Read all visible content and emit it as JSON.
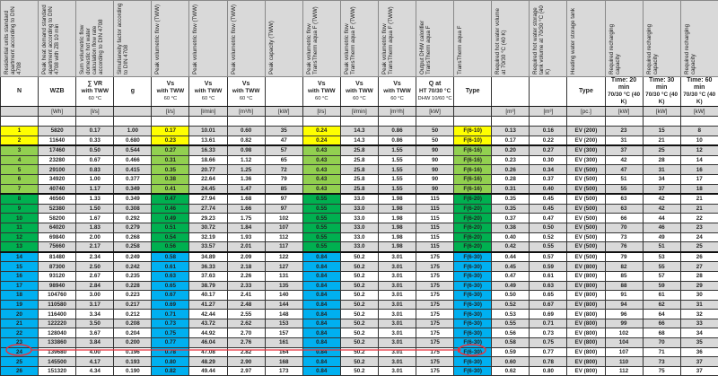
{
  "table": {
    "headers": [
      "Residential units standard apartment according to DIN 4708",
      "Peak heat demand standard apartment according to DIN 4708 with ZB 10 min",
      "Sum volumetric flow domestic hot water calculation flow rate according to DIN 4708",
      "Simultaneity factor according to DIN 4708",
      "Peak volumetric flow (TWW)",
      "Peak volumetric flow (TWW)",
      "Peak volumetric flow (TWW)",
      "Peak capacity (TWW)",
      "Peak volumetric flow TransTherm aqua F (TWW)",
      "Peak volumetric flow TransTherm aqua F (TWW)",
      "Peak volumetric flow TransTherm aqua F (TWW)",
      "Output DHW calorifier TransTherm aqua F",
      "TransTherm aqua F",
      "Required hot water volume at 70/30 °C (40 K)",
      "Required hot water storage tank volume at 70/30 °C (40 K)",
      "Heating water storage tank",
      "Required recharging capacity",
      "Required recharging capacity",
      "Required recharging capacity"
    ],
    "symbols": [
      [
        "N",
        "",
        ""
      ],
      [
        "WZB",
        "",
        ""
      ],
      [
        "∑ VR",
        "with TWW",
        "60 °C"
      ],
      [
        "g",
        "",
        ""
      ],
      [
        "Vs",
        "with TWW",
        "60 °C"
      ],
      [
        "Vs",
        "with TWW",
        "60 °C"
      ],
      [
        "Vs",
        "with TWW",
        "60 °C"
      ],
      [
        "",
        "",
        ""
      ],
      [
        "Vs",
        "with TWW",
        "60 °C"
      ],
      [
        "Vs",
        "with TWW",
        "60 °C"
      ],
      [
        "Vs",
        "with TWW",
        "60 °C"
      ],
      [
        "Q at",
        "HT 70/30 °C",
        "DHW 10/60 °C"
      ],
      [
        "Type",
        "",
        ""
      ],
      [
        "",
        "",
        ""
      ],
      [
        "",
        "",
        ""
      ],
      [
        "Type",
        "",
        ""
      ],
      [
        "Time: 20 min",
        "70/30 °C (40 K)",
        ""
      ],
      [
        "Time: 30 min",
        "70/30 °C (40 K)",
        ""
      ],
      [
        "Time: 60 min",
        "70/30 °C (40 K)",
        ""
      ]
    ],
    "units": [
      "",
      "[Wh]",
      "[l/s]",
      "",
      "[l/s]",
      "[l/min]",
      "[m³/h]",
      "[kW]",
      "[l/s]",
      "[l/min]",
      "[m³/h]",
      "[kW]",
      "",
      "[m³]",
      "[m³]",
      "[pc.]",
      "[kW]",
      "[kW]",
      "[kW]"
    ],
    "highlight_colors": {
      "yellow": "#ffff00",
      "lgreen": "#92d050",
      "green": "#00b050",
      "blue": "#00b0f0"
    },
    "annotation": {
      "highlighted_row": "25",
      "color": "#e8323c"
    },
    "rows": [
      [
        "1",
        "5820",
        "0.17",
        "1.00",
        "0.17",
        "10.01",
        "0.60",
        "35",
        "0.24",
        "14.3",
        "0.86",
        "50",
        "F(6-10)",
        "0.13",
        "0.16",
        "EV (200)",
        "23",
        "15",
        "8"
      ],
      [
        "2",
        "11640",
        "0.33",
        "0.680",
        "0.23",
        "13.61",
        "0.82",
        "47",
        "0.24",
        "14.3",
        "0.86",
        "50",
        "F(6-10)",
        "0.17",
        "0.22",
        "EV (200)",
        "31",
        "21",
        "10"
      ],
      [
        "3",
        "17460",
        "0.50",
        "0.544",
        "0.27",
        "16.33",
        "0.98",
        "57",
        "0.43",
        "25.8",
        "1.55",
        "90",
        "F(6-16)",
        "0.20",
        "0.27",
        "EV (300)",
        "37",
        "25",
        "12"
      ],
      [
        "4",
        "23280",
        "0.67",
        "0.466",
        "0.31",
        "18.66",
        "1.12",
        "65",
        "0.43",
        "25.8",
        "1.55",
        "90",
        "F(6-16)",
        "0.23",
        "0.30",
        "EV (300)",
        "42",
        "28",
        "14"
      ],
      [
        "5",
        "29100",
        "0.83",
        "0.415",
        "0.35",
        "20.77",
        "1.25",
        "72",
        "0.43",
        "25.8",
        "1.55",
        "90",
        "F(6-16)",
        "0.26",
        "0.34",
        "EV (500)",
        "47",
        "31",
        "16"
      ],
      [
        "6",
        "34920",
        "1.00",
        "0.377",
        "0.38",
        "22.64",
        "1.36",
        "79",
        "0.43",
        "25.8",
        "1.55",
        "90",
        "F(6-16)",
        "0.28",
        "0.37",
        "EV (500)",
        "51",
        "34",
        "17"
      ],
      [
        "7",
        "40740",
        "1.17",
        "0.349",
        "0.41",
        "24.45",
        "1.47",
        "85",
        "0.43",
        "25.8",
        "1.55",
        "90",
        "F(6-16)",
        "0.31",
        "0.40",
        "EV (500)",
        "55",
        "37",
        "18"
      ],
      [
        "8",
        "46560",
        "1.33",
        "0.349",
        "0.47",
        "27.94",
        "1.68",
        "97",
        "0.55",
        "33.0",
        "1.98",
        "115",
        "F(6-20)",
        "0.35",
        "0.45",
        "EV (500)",
        "63",
        "42",
        "21"
      ],
      [
        "9",
        "52380",
        "1.50",
        "0.308",
        "0.46",
        "27.74",
        "1.66",
        "97",
        "0.55",
        "33.0",
        "1.98",
        "115",
        "F(6-20)",
        "0.35",
        "0.45",
        "EV (500)",
        "63",
        "42",
        "21"
      ],
      [
        "10",
        "58200",
        "1.67",
        "0.292",
        "0.49",
        "29.23",
        "1.75",
        "102",
        "0.55",
        "33.0",
        "1.98",
        "115",
        "F(6-20)",
        "0.37",
        "0.47",
        "EV (500)",
        "66",
        "44",
        "22"
      ],
      [
        "11",
        "64020",
        "1.83",
        "0.279",
        "0.51",
        "30.72",
        "1.84",
        "107",
        "0.55",
        "33.0",
        "1.98",
        "115",
        "F(6-20)",
        "0.38",
        "0.50",
        "EV (500)",
        "70",
        "46",
        "23"
      ],
      [
        "12",
        "69840",
        "2.00",
        "0.268",
        "0.54",
        "32.19",
        "1.93",
        "112",
        "0.55",
        "33.0",
        "1.98",
        "115",
        "F(6-20)",
        "0.40",
        "0.52",
        "EV (500)",
        "73",
        "49",
        "24"
      ],
      [
        "13",
        "75660",
        "2.17",
        "0.258",
        "0.56",
        "33.57",
        "2.01",
        "117",
        "0.55",
        "33.0",
        "1.98",
        "115",
        "F(6-20)",
        "0.42",
        "0.55",
        "EV (500)",
        "76",
        "51",
        "25"
      ],
      [
        "14",
        "81480",
        "2.34",
        "0.249",
        "0.58",
        "34.89",
        "2.09",
        "122",
        "0.84",
        "50.2",
        "3.01",
        "175",
        "F(6-30)",
        "0.44",
        "0.57",
        "EV (500)",
        "79",
        "53",
        "26"
      ],
      [
        "15",
        "87300",
        "2.50",
        "0.242",
        "0.61",
        "36.33",
        "2.18",
        "127",
        "0.84",
        "50.2",
        "3.01",
        "175",
        "F(6-30)",
        "0.45",
        "0.59",
        "EV (800)",
        "82",
        "55",
        "27"
      ],
      [
        "16",
        "93120",
        "2.67",
        "0.235",
        "0.63",
        "37.63",
        "2.26",
        "131",
        "0.84",
        "50.2",
        "3.01",
        "175",
        "F(6-30)",
        "0.47",
        "0.61",
        "EV (800)",
        "85",
        "57",
        "28"
      ],
      [
        "17",
        "98940",
        "2.84",
        "0.228",
        "0.65",
        "38.79",
        "2.33",
        "135",
        "0.84",
        "50.2",
        "3.01",
        "175",
        "F(6-30)",
        "0.49",
        "0.63",
        "EV (800)",
        "88",
        "59",
        "29"
      ],
      [
        "18",
        "104760",
        "3.00",
        "0.223",
        "0.67",
        "40.17",
        "2.41",
        "140",
        "0.84",
        "50.2",
        "3.01",
        "175",
        "F(6-30)",
        "0.50",
        "0.65",
        "EV (800)",
        "91",
        "61",
        "30"
      ],
      [
        "19",
        "110580",
        "3.17",
        "0.217",
        "0.69",
        "41.27",
        "2.48",
        "144",
        "0.84",
        "50.2",
        "3.01",
        "175",
        "F(6-30)",
        "0.52",
        "0.67",
        "EV (800)",
        "94",
        "62",
        "31"
      ],
      [
        "20",
        "116400",
        "3.34",
        "0.212",
        "0.71",
        "42.44",
        "2.55",
        "148",
        "0.84",
        "50.2",
        "3.01",
        "175",
        "F(6-30)",
        "0.53",
        "0.69",
        "EV (800)",
        "96",
        "64",
        "32"
      ],
      [
        "21",
        "122220",
        "3.50",
        "0.208",
        "0.73",
        "43.72",
        "2.62",
        "153",
        "0.84",
        "50.2",
        "3.01",
        "175",
        "F(6-30)",
        "0.55",
        "0.71",
        "EV (800)",
        "99",
        "66",
        "33"
      ],
      [
        "22",
        "128040",
        "3.67",
        "0.204",
        "0.75",
        "44.92",
        "2.70",
        "157",
        "0.84",
        "50.2",
        "3.01",
        "175",
        "F(6-30)",
        "0.56",
        "0.73",
        "EV (800)",
        "102",
        "68",
        "34"
      ],
      [
        "23",
        "133860",
        "3.84",
        "0.200",
        "0.77",
        "46.04",
        "2.76",
        "161",
        "0.84",
        "50.2",
        "3.01",
        "175",
        "F(6-30)",
        "0.58",
        "0.75",
        "EV (800)",
        "104",
        "70",
        "35"
      ],
      [
        "24",
        "139680",
        "4.00",
        "0.196",
        "0.78",
        "47.08",
        "2.82",
        "164",
        "0.84",
        "50.2",
        "3.01",
        "175",
        "F(6-30)",
        "0.59",
        "0.77",
        "EV (800)",
        "107",
        "71",
        "36"
      ],
      [
        "25",
        "145500",
        "4.17",
        "0.193",
        "0.80",
        "48.29",
        "2.90",
        "168",
        "0.84",
        "50.2",
        "3.01",
        "175",
        "F(6-30)",
        "0.60",
        "0.78",
        "EV (800)",
        "110",
        "73",
        "37"
      ],
      [
        "26",
        "151320",
        "4.34",
        "0.190",
        "0.82",
        "49.44",
        "2.97",
        "173",
        "0.84",
        "50.2",
        "3.01",
        "175",
        "F(6-30)",
        "0.62",
        "0.80",
        "EV (800)",
        "112",
        "75",
        "37"
      ]
    ]
  }
}
